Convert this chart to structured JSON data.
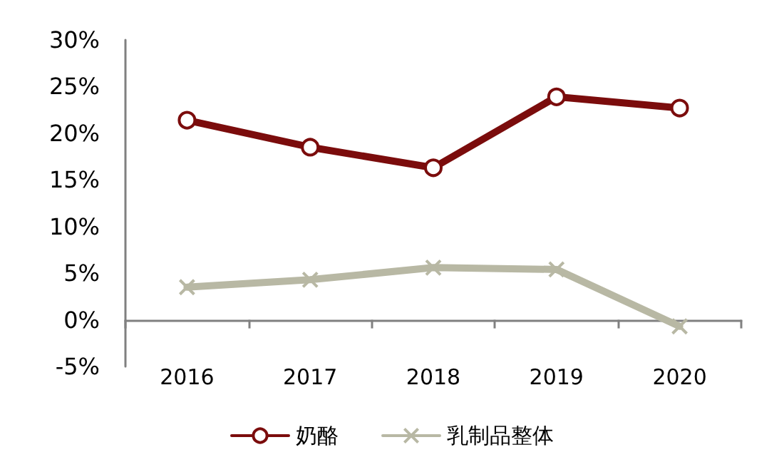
{
  "chart_data": {
    "type": "line",
    "categories": [
      "2016",
      "2017",
      "2018",
      "2019",
      "2020"
    ],
    "series": [
      {
        "name": "奶酪",
        "color": "#7b0c0c",
        "marker": "circle",
        "values": [
          21.4,
          18.5,
          16.3,
          23.9,
          22.7
        ]
      },
      {
        "name": "乳制品整体",
        "color": "#b8b8a4",
        "marker": "cross",
        "values": [
          3.5,
          4.3,
          5.6,
          5.4,
          -0.7
        ]
      }
    ],
    "ylim": [
      -5,
      30
    ],
    "yticks": [
      {
        "value": -5,
        "label": "-5%"
      },
      {
        "value": 0,
        "label": "0%"
      },
      {
        "value": 5,
        "label": "5%"
      },
      {
        "value": 10,
        "label": "10%"
      },
      {
        "value": 15,
        "label": "15%"
      },
      {
        "value": 20,
        "label": "20%"
      },
      {
        "value": 25,
        "label": "25%"
      },
      {
        "value": 30,
        "label": "30%"
      }
    ],
    "legend": "bottom"
  }
}
